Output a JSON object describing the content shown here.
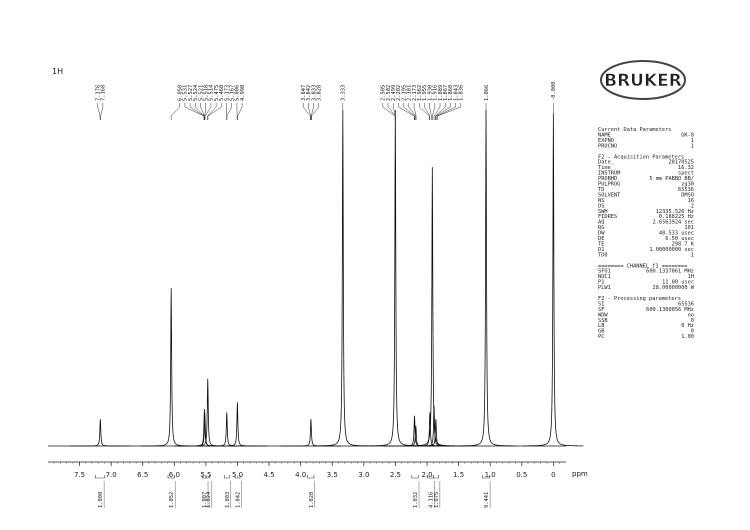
{
  "chart_data": {
    "type": "nmr",
    "title": "1H",
    "x_label": "ppm",
    "xlim": [
      8.0,
      -0.2
    ],
    "ylim": [
      0,
      100
    ],
    "xticks": [
      7.5,
      {
        "value": 7,
        "label": "7.0"
      },
      6.5,
      {
        "value": 6,
        "label": "6.0"
      },
      5.5,
      {
        "value": 5,
        "label": "5.0"
      },
      4.5,
      {
        "value": 4,
        "label": "4.0"
      },
      3.5,
      {
        "value": 3,
        "label": "3.0"
      },
      2.5,
      {
        "value": 2,
        "label": "2.0"
      },
      1.5,
      {
        "value": 1,
        "label": "1.0"
      },
      0.5,
      0
    ],
    "x": [
      7.172,
      6.05,
      5.524,
      5.518,
      5.471,
      5.17,
      5.002,
      3.838,
      3.333,
      2.502,
      2.198,
      2.177,
      1.955,
      1.916,
      1.889,
      1.86,
      1.066,
      0
    ],
    "values": [
      8,
      47,
      11,
      10,
      20,
      10,
      13,
      8,
      100,
      100,
      9,
      6,
      10,
      83,
      12,
      8,
      100,
      99
    ],
    "peak_label_groups": [
      [
        7.176,
        7.168
      ],
      [
        {
          "value": 6.05,
          "label": "6.050"
        },
        5.531,
        5.527,
        5.524,
        5.521,
        5.518,
        5.514,
        5.475,
        5.468,
        5.173,
        5.167,
        5.006,
        4.998
      ],
      [
        3.847,
        3.842,
        3.833,
        3.828
      ],
      [
        3.333
      ],
      [
        2.505,
        2.502,
        2.499,
        2.202,
        2.195,
        2.181,
        2.173,
        1.962,
        1.955,
        {
          "value": 1.93,
          "label": "1.930"
        },
        1.916,
        1.889,
        1.867,
        {
          "value": 1.86,
          "label": "1.860"
        },
        1.843,
        1.836
      ],
      [
        1.066
      ],
      [
        {
          "value": 0,
          "label": "-0.000"
        }
      ]
    ],
    "integrals": [
      {
        "range": [
          7.25,
          7.1
        ],
        "value": {
          "value": 1,
          "label": "1.000"
        }
      },
      {
        "range": [
          6.1,
          6.0
        ],
        "value": {
          "value": 1.052,
          "label": "1.052"
        }
      },
      {
        "range": [
          5.56,
          5.5
        ],
        "value": {
          "value": 1.007,
          "label": "1.007"
        }
      },
      {
        "range": [
          5.5,
          5.44
        ],
        "value": {
          "value": 1.024,
          "label": "1.024"
        }
      },
      {
        "range": [
          5.21,
          5.13
        ],
        "value": {
          "value": 1.003,
          "label": "1.003"
        }
      },
      {
        "range": [
          5.04,
          4.96
        ],
        "value": {
          "value": 1.042,
          "label": "1.042"
        }
      },
      {
        "range": [
          3.89,
          3.79
        ],
        "value": {
          "value": 1.028,
          "label": "1.028"
        }
      },
      {
        "range": [
          2.24,
          2.14
        ],
        "value": {
          "value": 1.032,
          "label": "1.032"
        }
      },
      {
        "range": [
          1.99,
          1.9
        ],
        "value": {
          "value": 4.116,
          "label": "4.116"
        }
      },
      {
        "range": [
          1.9,
          1.82
        ],
        "value": {
          "value": 1.075,
          "label": "1.075"
        }
      },
      {
        "range": [
          1.12,
          1.01
        ],
        "value": {
          "value": 9.441,
          "label": "9.441"
        }
      }
    ]
  },
  "logo": "BRUKER",
  "parameter_sections": [
    {
      "heading": "Current Data Parameters",
      "rows": [
        [
          "NAME",
          "GK-8"
        ],
        [
          "EXPNO",
          "1"
        ],
        [
          "PROCNO",
          "1"
        ]
      ]
    },
    {
      "heading": "F2 - Acquisition Parameters",
      "rows": [
        [
          "Date_",
          "20170525"
        ],
        [
          "Time",
          "16.32"
        ],
        [
          "INSTRUM",
          "spect"
        ],
        [
          "PROBHD",
          "5 mm PABBO BB/"
        ],
        [
          "PULPROG",
          "zg30"
        ],
        [
          "TD",
          "65536"
        ],
        [
          "SOLVENT",
          "DMSO"
        ],
        [
          "NS",
          "16"
        ],
        [
          "DS",
          "2"
        ],
        [
          "SWH",
          "12335.526 Hz"
        ],
        [
          "FIDRES",
          "0.188225 Hz"
        ],
        [
          "AQ",
          "2.6563924 sec"
        ],
        [
          "RG",
          "101"
        ],
        [
          "DW",
          "40.533 usec"
        ],
        [
          "DE",
          "6.50 usec"
        ],
        [
          "TE",
          "298.7 K"
        ],
        [
          "D1",
          "1.00000000 sec"
        ],
        [
          "TD0",
          "1"
        ]
      ]
    },
    {
      "heading": "======== CHANNEL f1 ========",
      "rows": [
        [
          "SFO1",
          "600.1337061 MHz"
        ],
        [
          "NUC1",
          "1H"
        ],
        [
          "P1",
          "11.00 usec"
        ],
        [
          "PLW1",
          "28.00000000 W"
        ]
      ]
    },
    {
      "heading": "F2 - Processing parameters",
      "rows": [
        [
          "SI",
          "65536"
        ],
        [
          "SF",
          "600.1300056 MHz"
        ],
        [
          "WDW",
          "no"
        ],
        [
          "SSB",
          "0"
        ],
        [
          "LB",
          "0 Hz"
        ],
        [
          "GB",
          "0"
        ],
        [
          "PC",
          "1.00"
        ]
      ]
    }
  ]
}
